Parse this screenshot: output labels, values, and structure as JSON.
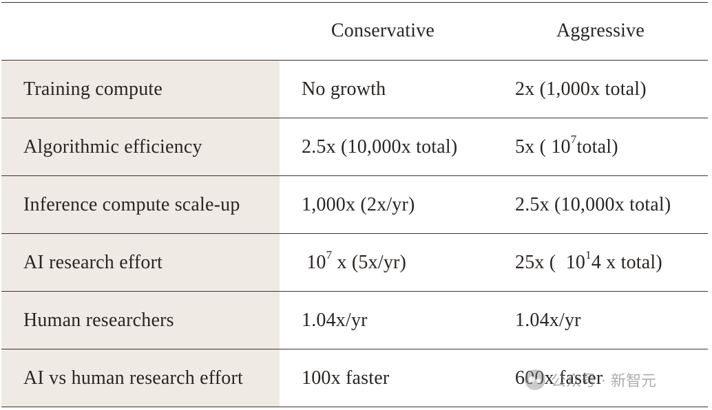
{
  "header": {
    "label": "",
    "conservative": "Conservative",
    "aggressive": "Aggressive"
  },
  "rows": [
    {
      "label": "Training compute",
      "conservative": {
        "pre": "No growth",
        "sup": "",
        "post": ""
      },
      "aggressive": {
        "pre": "2x (1,000x total)",
        "sup": "",
        "post": ""
      }
    },
    {
      "label": "Algorithmic efficiency",
      "conservative": {
        "pre": "2.5x (10,000x total)",
        "sup": "",
        "post": ""
      },
      "aggressive": {
        "pre": "5x ( 10",
        "sup": "7",
        "post": " total)"
      }
    },
    {
      "label": "Inference compute scale-up",
      "conservative": {
        "pre": "1,000x (2x/yr)",
        "sup": "",
        "post": ""
      },
      "aggressive": {
        "pre": "2.5x (10,000x total)",
        "sup": "",
        "post": ""
      }
    },
    {
      "label": "AI research effort",
      "conservative": {
        "pre": " 10",
        "sup": "7",
        "post": " x (5x/yr)"
      },
      "aggressive": {
        "pre": "25x (  10",
        "sup": "1",
        "post": "4 x total)"
      }
    },
    {
      "label": "Human researchers",
      "conservative": {
        "pre": "1.04x/yr",
        "sup": "",
        "post": ""
      },
      "aggressive": {
        "pre": "1.04x/yr",
        "sup": "",
        "post": ""
      }
    },
    {
      "label": "AI vs human research effort",
      "conservative": {
        "pre": "100x faster",
        "sup": "",
        "post": ""
      },
      "aggressive": {
        "pre": "600x faster",
        "sup": "",
        "post": ""
      }
    }
  ],
  "watermark": {
    "text": "公众号 · 新智元",
    "icon": "wechat-icon"
  }
}
